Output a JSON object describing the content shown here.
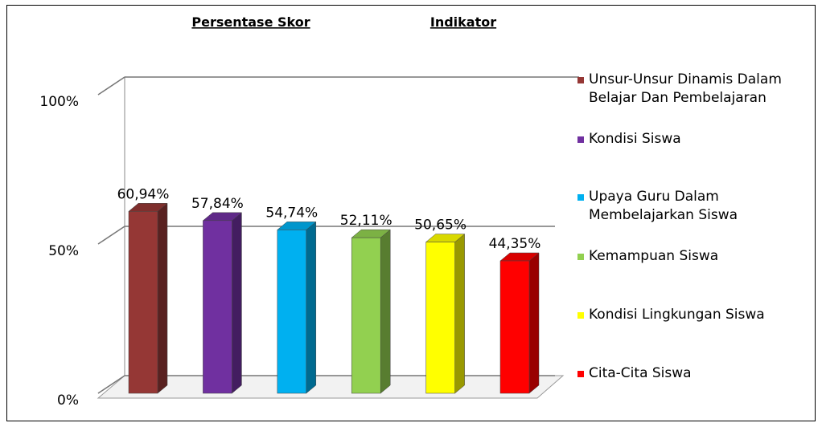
{
  "chart_data": {
    "type": "bar3d",
    "title": "Persentase Skor",
    "subtitle": "Indikator",
    "series": [
      {
        "name": "Unsur-Unsur Dinamis Dalam Belajar Dan Pembelajaran",
        "color": "#953735",
        "values": [
          60.94
        ],
        "value_labels": [
          "60,94%"
        ]
      },
      {
        "name": "Kondisi Siswa",
        "color": "#7030a0",
        "values": [
          57.84
        ],
        "value_labels": [
          "57,84%"
        ]
      },
      {
        "name": "Upaya Guru Dalam Membelajarkan Siswa",
        "color": "#00b0f0",
        "values": [
          54.74
        ],
        "value_labels": [
          "54,74%"
        ]
      },
      {
        "name": "Kemampuan Siswa",
        "color": "#92d050",
        "values": [
          52.11
        ],
        "value_labels": [
          "52,11%"
        ]
      },
      {
        "name": "Kondisi Lingkungan Siswa",
        "color": "#ffff00",
        "values": [
          50.65
        ],
        "value_labels": [
          "50,65%"
        ]
      },
      {
        "name": "Cita-Cita Siswa",
        "color": "#ff0000",
        "values": [
          44.35
        ],
        "value_labels": [
          "44,35%"
        ]
      }
    ],
    "ylim": [
      0,
      100
    ],
    "yticks": [
      {
        "value": 0,
        "label": "0%"
      },
      {
        "value": 50,
        "label": "50%"
      },
      {
        "value": 100,
        "label": "100%"
      }
    ],
    "grid": true,
    "legend": "right"
  }
}
